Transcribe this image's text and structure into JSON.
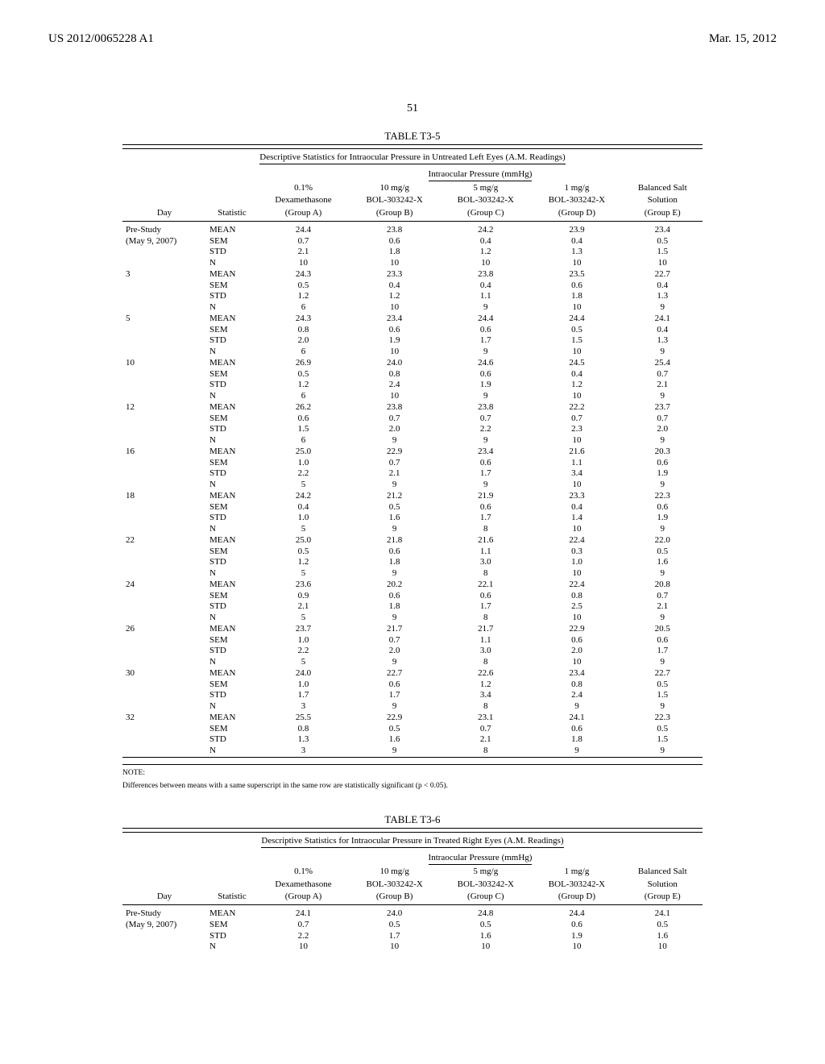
{
  "header": {
    "left": "US 2012/0065228 A1",
    "right": "Mar. 15, 2012",
    "page_number": "51"
  },
  "table1": {
    "caption": "TABLE T3-5",
    "title": "Descriptive Statistics for Intraocular Pressure in Untreated Left Eyes (A.M. Readings)",
    "pressure_header": "Intraocular Pressure (mmHg)",
    "columns": {
      "day": "Day",
      "stat": "Statistic",
      "a1": "0.1%",
      "a2": "Dexamethasone",
      "a3": "(Group A)",
      "b1": "10 mg/g",
      "b2": "BOL-303242-X",
      "b3": "(Group B)",
      "c1": "5 mg/g",
      "c2": "BOL-303242-X",
      "c3": "(Group C)",
      "d1": "1 mg/g",
      "d2": "BOL-303242-X",
      "d3": "(Group D)",
      "e1": "Balanced Salt",
      "e2": "Solution",
      "e3": "(Group E)"
    },
    "rows": [
      {
        "day": "Pre-Study",
        "stat": "MEAN",
        "a": "24.4",
        "b": "23.8",
        "c": "24.2",
        "d": "23.9",
        "e": "23.4"
      },
      {
        "day": "(May 9, 2007)",
        "stat": "SEM",
        "a": "0.7",
        "b": "0.6",
        "c": "0.4",
        "d": "0.4",
        "e": "0.5"
      },
      {
        "day": "",
        "stat": "STD",
        "a": "2.1",
        "b": "1.8",
        "c": "1.2",
        "d": "1.3",
        "e": "1.5"
      },
      {
        "day": "",
        "stat": "N",
        "a": "10",
        "b": "10",
        "c": "10",
        "d": "10",
        "e": "10"
      },
      {
        "day": "3",
        "stat": "MEAN",
        "a": "24.3",
        "b": "23.3",
        "c": "23.8",
        "d": "23.5",
        "e": "22.7"
      },
      {
        "day": "",
        "stat": "SEM",
        "a": "0.5",
        "b": "0.4",
        "c": "0.4",
        "d": "0.6",
        "e": "0.4"
      },
      {
        "day": "",
        "stat": "STD",
        "a": "1.2",
        "b": "1.2",
        "c": "1.1",
        "d": "1.8",
        "e": "1.3"
      },
      {
        "day": "",
        "stat": "N",
        "a": "6",
        "b": "10",
        "c": "9",
        "d": "10",
        "e": "9"
      },
      {
        "day": "5",
        "stat": "MEAN",
        "a": "24.3",
        "b": "23.4",
        "c": "24.4",
        "d": "24.4",
        "e": "24.1"
      },
      {
        "day": "",
        "stat": "SEM",
        "a": "0.8",
        "b": "0.6",
        "c": "0.6",
        "d": "0.5",
        "e": "0.4"
      },
      {
        "day": "",
        "stat": "STD",
        "a": "2.0",
        "b": "1.9",
        "c": "1.7",
        "d": "1.5",
        "e": "1.3"
      },
      {
        "day": "",
        "stat": "N",
        "a": "6",
        "b": "10",
        "c": "9",
        "d": "10",
        "e": "9"
      },
      {
        "day": "10",
        "stat": "MEAN",
        "a": "26.9",
        "b": "24.0",
        "c": "24.6",
        "d": "24.5",
        "e": "25.4"
      },
      {
        "day": "",
        "stat": "SEM",
        "a": "0.5",
        "b": "0.8",
        "c": "0.6",
        "d": "0.4",
        "e": "0.7"
      },
      {
        "day": "",
        "stat": "STD",
        "a": "1.2",
        "b": "2.4",
        "c": "1.9",
        "d": "1.2",
        "e": "2.1"
      },
      {
        "day": "",
        "stat": "N",
        "a": "6",
        "b": "10",
        "c": "9",
        "d": "10",
        "e": "9"
      },
      {
        "day": "12",
        "stat": "MEAN",
        "a": "26.2",
        "b": "23.8",
        "c": "23.8",
        "d": "22.2",
        "e": "23.7"
      },
      {
        "day": "",
        "stat": "SEM",
        "a": "0.6",
        "b": "0.7",
        "c": "0.7",
        "d": "0.7",
        "e": "0.7"
      },
      {
        "day": "",
        "stat": "STD",
        "a": "1.5",
        "b": "2.0",
        "c": "2.2",
        "d": "2.3",
        "e": "2.0"
      },
      {
        "day": "",
        "stat": "N",
        "a": "6",
        "b": "9",
        "c": "9",
        "d": "10",
        "e": "9"
      },
      {
        "day": "16",
        "stat": "MEAN",
        "a": "25.0",
        "b": "22.9",
        "c": "23.4",
        "d": "21.6",
        "e": "20.3"
      },
      {
        "day": "",
        "stat": "SEM",
        "a": "1.0",
        "b": "0.7",
        "c": "0.6",
        "d": "1.1",
        "e": "0.6"
      },
      {
        "day": "",
        "stat": "STD",
        "a": "2.2",
        "b": "2.1",
        "c": "1.7",
        "d": "3.4",
        "e": "1.9"
      },
      {
        "day": "",
        "stat": "N",
        "a": "5",
        "b": "9",
        "c": "9",
        "d": "10",
        "e": "9"
      },
      {
        "day": "18",
        "stat": "MEAN",
        "a": "24.2",
        "b": "21.2",
        "c": "21.9",
        "d": "23.3",
        "e": "22.3"
      },
      {
        "day": "",
        "stat": "SEM",
        "a": "0.4",
        "b": "0.5",
        "c": "0.6",
        "d": "0.4",
        "e": "0.6"
      },
      {
        "day": "",
        "stat": "STD",
        "a": "1.0",
        "b": "1.6",
        "c": "1.7",
        "d": "1.4",
        "e": "1.9"
      },
      {
        "day": "",
        "stat": "N",
        "a": "5",
        "b": "9",
        "c": "8",
        "d": "10",
        "e": "9"
      },
      {
        "day": "22",
        "stat": "MEAN",
        "a": "25.0",
        "b": "21.8",
        "c": "21.6",
        "d": "22.4",
        "e": "22.0"
      },
      {
        "day": "",
        "stat": "SEM",
        "a": "0.5",
        "b": "0.6",
        "c": "1.1",
        "d": "0.3",
        "e": "0.5"
      },
      {
        "day": "",
        "stat": "STD",
        "a": "1.2",
        "b": "1.8",
        "c": "3.0",
        "d": "1.0",
        "e": "1.6"
      },
      {
        "day": "",
        "stat": "N",
        "a": "5",
        "b": "9",
        "c": "8",
        "d": "10",
        "e": "9"
      },
      {
        "day": "24",
        "stat": "MEAN",
        "a": "23.6",
        "b": "20.2",
        "c": "22.1",
        "d": "22.4",
        "e": "20.8"
      },
      {
        "day": "",
        "stat": "SEM",
        "a": "0.9",
        "b": "0.6",
        "c": "0.6",
        "d": "0.8",
        "e": "0.7"
      },
      {
        "day": "",
        "stat": "STD",
        "a": "2.1",
        "b": "1.8",
        "c": "1.7",
        "d": "2.5",
        "e": "2.1"
      },
      {
        "day": "",
        "stat": "N",
        "a": "5",
        "b": "9",
        "c": "8",
        "d": "10",
        "e": "9"
      },
      {
        "day": "26",
        "stat": "MEAN",
        "a": "23.7",
        "b": "21.7",
        "c": "21.7",
        "d": "22.9",
        "e": "20.5"
      },
      {
        "day": "",
        "stat": "SEM",
        "a": "1.0",
        "b": "0.7",
        "c": "1.1",
        "d": "0.6",
        "e": "0.6"
      },
      {
        "day": "",
        "stat": "STD",
        "a": "2.2",
        "b": "2.0",
        "c": "3.0",
        "d": "2.0",
        "e": "1.7"
      },
      {
        "day": "",
        "stat": "N",
        "a": "5",
        "b": "9",
        "c": "8",
        "d": "10",
        "e": "9"
      },
      {
        "day": "30",
        "stat": "MEAN",
        "a": "24.0",
        "b": "22.7",
        "c": "22.6",
        "d": "23.4",
        "e": "22.7"
      },
      {
        "day": "",
        "stat": "SEM",
        "a": "1.0",
        "b": "0.6",
        "c": "1.2",
        "d": "0.8",
        "e": "0.5"
      },
      {
        "day": "",
        "stat": "STD",
        "a": "1.7",
        "b": "1.7",
        "c": "3.4",
        "d": "2.4",
        "e": "1.5"
      },
      {
        "day": "",
        "stat": "N",
        "a": "3",
        "b": "9",
        "c": "8",
        "d": "9",
        "e": "9"
      },
      {
        "day": "32",
        "stat": "MEAN",
        "a": "25.5",
        "b": "22.9",
        "c": "23.1",
        "d": "24.1",
        "e": "22.3"
      },
      {
        "day": "",
        "stat": "SEM",
        "a": "0.8",
        "b": "0.5",
        "c": "0.7",
        "d": "0.6",
        "e": "0.5"
      },
      {
        "day": "",
        "stat": "STD",
        "a": "1.3",
        "b": "1.6",
        "c": "2.1",
        "d": "1.8",
        "e": "1.5"
      },
      {
        "day": "",
        "stat": "N",
        "a": "3",
        "b": "9",
        "c": "8",
        "d": "9",
        "e": "9"
      }
    ],
    "note1": "NOTE:",
    "note2": "Differences between means with a same superscript in the same row are statistically significant (p < 0.05)."
  },
  "table2": {
    "caption": "TABLE T3-6",
    "title": "Descriptive Statistics for Intraocular Pressure in Treated Right Eyes (A.M. Readings)",
    "pressure_header": "Intraocular Pressure (mmHg)",
    "columns": {
      "day": "Day",
      "stat": "Statistic",
      "a1": "0.1%",
      "a2": "Dexamethasone",
      "a3": "(Group A)",
      "b1": "10 mg/g",
      "b2": "BOL-303242-X",
      "b3": "(Group B)",
      "c1": "5 mg/g",
      "c2": "BOL-303242-X",
      "c3": "(Group C)",
      "d1": "1 mg/g",
      "d2": "BOL-303242-X",
      "d3": "(Group D)",
      "e1": "Balanced Salt",
      "e2": "Solution",
      "e3": "(Group E)"
    },
    "rows": [
      {
        "day": "Pre-Study",
        "stat": "MEAN",
        "a": "24.1",
        "b": "24.0",
        "c": "24.8",
        "d": "24.4",
        "e": "24.1"
      },
      {
        "day": "(May 9, 2007)",
        "stat": "SEM",
        "a": "0.7",
        "b": "0.5",
        "c": "0.5",
        "d": "0.6",
        "e": "0.5"
      },
      {
        "day": "",
        "stat": "STD",
        "a": "2.2",
        "b": "1.7",
        "c": "1.6",
        "d": "1.9",
        "e": "1.6"
      },
      {
        "day": "",
        "stat": "N",
        "a": "10",
        "b": "10",
        "c": "10",
        "d": "10",
        "e": "10"
      }
    ]
  }
}
